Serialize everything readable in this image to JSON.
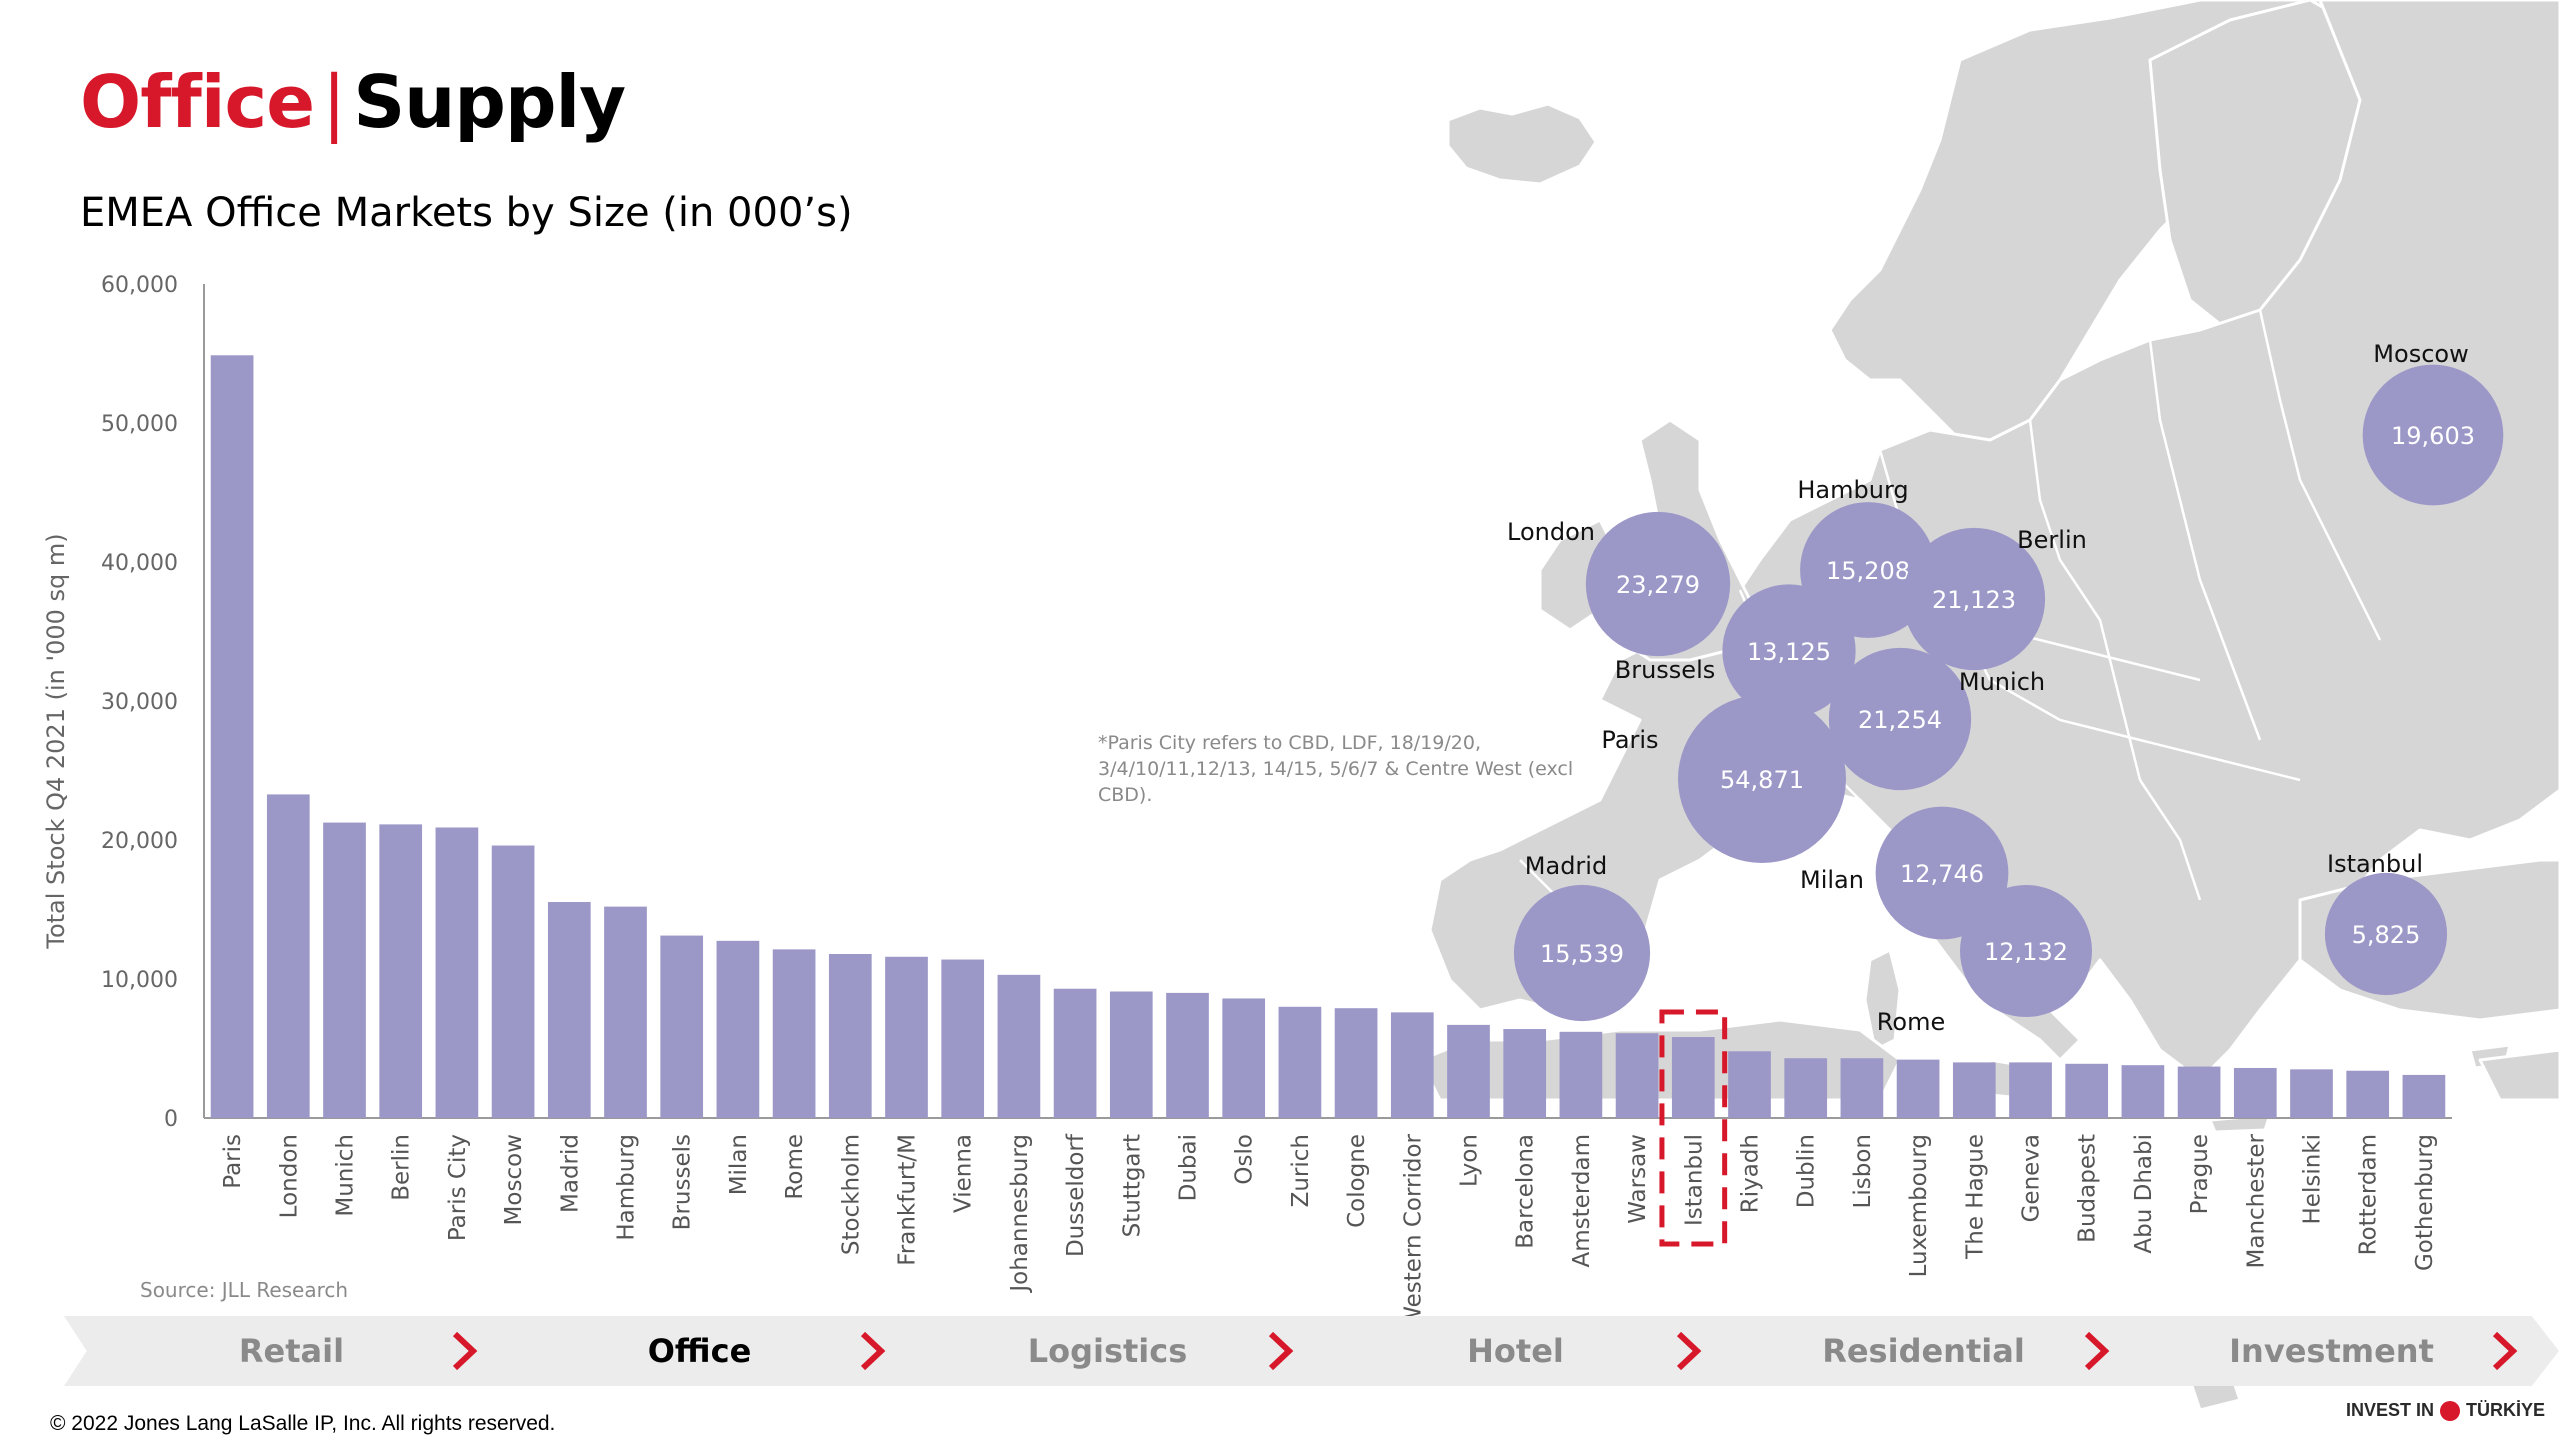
{
  "header": {
    "title_part1": "Office",
    "title_separator": "|",
    "title_part2": "Supply",
    "subtitle": "EMEA Office Markets by Size (in 000’s)"
  },
  "footnote": "*Paris City refers to CBD, LDF, 18/19/20, 3/4/10/11,12/13, 14/15, 5/6/7 & Centre West (excl CBD).",
  "source": "Source: JLL Research",
  "copyright": "© 2022 Jones Lang LaSalle IP, Inc. All rights reserved.",
  "brand": {
    "left": "INVEST IN",
    "right": "TÜRKİYE"
  },
  "nav": {
    "items": [
      {
        "label": "Retail",
        "active": false
      },
      {
        "label": "Office",
        "active": true
      },
      {
        "label": "Logistics",
        "active": false
      },
      {
        "label": "Hotel",
        "active": false
      },
      {
        "label": "Residential",
        "active": false
      },
      {
        "label": "Investment",
        "active": false
      }
    ]
  },
  "colors": {
    "bar": "#9b98c8",
    "bubble": "#9b98c8",
    "accent_red": "#d7182a",
    "map_land": "#d6d6d6",
    "map_border": "#ffffff",
    "axis_text": "#666666"
  },
  "chart_data": {
    "type": "bar",
    "ylabel": "Total Stock Q4 2021 (in '000 sq m)",
    "ylim": [
      0,
      60000
    ],
    "yticks": [
      0,
      10000,
      20000,
      30000,
      40000,
      50000,
      60000
    ],
    "ytick_labels": [
      "0",
      "10,000",
      "20,000",
      "30,000",
      "40,000",
      "50,000",
      "60,000"
    ],
    "categories": [
      "Paris",
      "London",
      "Munich",
      "Berlin",
      "Paris City",
      "Moscow",
      "Madrid",
      "Hamburg",
      "Brussels",
      "Milan",
      "Rome",
      "Stockholm",
      "Frankfurt/M",
      "Vienna",
      "Johannesburg",
      "Dusseldorf",
      "Stuttgart",
      "Dubai",
      "Oslo",
      "Zurich",
      "Cologne",
      "Western Corridor",
      "Lyon",
      "Barcelona",
      "Amsterdam",
      "Warsaw",
      "Istanbul",
      "Riyadh",
      "Dublin",
      "Lisbon",
      "Luxembourg",
      "The Hague",
      "Geneva",
      "Budapest",
      "Abu Dhabi",
      "Prague",
      "Manchester",
      "Helsinki",
      "Rotterdam",
      "Gothenburg"
    ],
    "values": [
      54871,
      23279,
      21254,
      21123,
      20900,
      19603,
      15539,
      15208,
      13125,
      12746,
      12132,
      11800,
      11600,
      11400,
      10300,
      9300,
      9100,
      9000,
      8600,
      8000,
      7900,
      7600,
      6700,
      6400,
      6200,
      6100,
      5825,
      4800,
      4300,
      4300,
      4200,
      4000,
      4000,
      3900,
      3800,
      3700,
      3600,
      3500,
      3400,
      3100
    ],
    "highlight": "Istanbul",
    "grid": false,
    "map_bubbles": [
      {
        "city": "London",
        "value_label": "23,279",
        "value": 23279
      },
      {
        "city": "Hamburg",
        "value_label": "15,208",
        "value": 15208
      },
      {
        "city": "Berlin",
        "value_label": "21,123",
        "value": 21123
      },
      {
        "city": "Brussels",
        "value_label": "13,125",
        "value": 13125
      },
      {
        "city": "Munich",
        "value_label": "21,254",
        "value": 21254
      },
      {
        "city": "Paris",
        "value_label": "54,871",
        "value": 54871
      },
      {
        "city": "Madrid",
        "value_label": "15,539",
        "value": 15539
      },
      {
        "city": "Milan",
        "value_label": "12,746",
        "value": 12746
      },
      {
        "city": "Rome",
        "value_label": "12,132",
        "value": 12132
      },
      {
        "city": "Moscow",
        "value_label": "19,603",
        "value": 19603
      },
      {
        "city": "Istanbul",
        "value_label": "5,825",
        "value": 5825
      }
    ]
  }
}
